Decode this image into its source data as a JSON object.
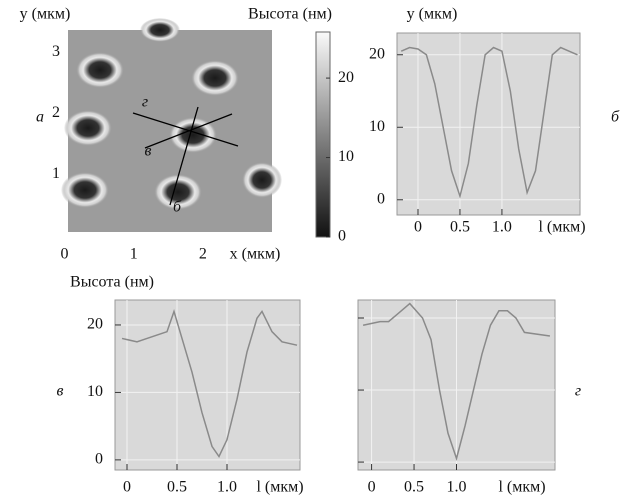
{
  "chart_data": [
    {
      "type": "image",
      "panel": "а",
      "x_label": "x (мкм)",
      "y_label": "y (мкм)",
      "xlim": [
        0.05,
        3.0
      ],
      "ylim": [
        0.05,
        3.37
      ],
      "xticks": [
        0,
        1,
        2
      ],
      "yticks": [
        1,
        2,
        3
      ],
      "line_labels": [
        "г",
        "в",
        "б"
      ],
      "colorbar": {
        "label": "Высота (нм)",
        "lim": [
          0,
          25.8
        ],
        "ticks": [
          0,
          10,
          20
        ]
      }
    },
    {
      "type": "line",
      "panel": "б",
      "y_label": "y (мкм)",
      "x_label": "l (мкм)",
      "xlim": [
        -0.25,
        1.93
      ],
      "ylim": [
        -2.1,
        23
      ],
      "xticks": [
        0,
        0.5,
        {
          "value": 1,
          "label": "1.0"
        }
      ],
      "yticks": [
        0,
        10,
        20
      ],
      "ytick_labels": true,
      "grid": true,
      "color": "#8a8a8a",
      "x": [
        -0.2,
        -0.1,
        0,
        0.1,
        0.2,
        0.3,
        0.4,
        0.5,
        0.6,
        0.7,
        0.8,
        0.9,
        1.0,
        1.1,
        1.2,
        1.3,
        1.4,
        1.5,
        1.6,
        1.7,
        1.8,
        1.9
      ],
      "values": [
        20.5,
        21,
        20.8,
        20,
        16,
        10,
        4,
        0.5,
        5,
        13,
        20,
        21,
        20.5,
        15,
        7,
        1,
        4,
        12,
        20,
        21,
        20.5,
        20
      ]
    },
    {
      "type": "line",
      "panel": "в",
      "y_label": "Высота (нм)",
      "x_label": "l (мкм)",
      "xlim": [
        -0.12,
        1.73
      ],
      "ylim": [
        -1.5,
        23.7
      ],
      "xticks": [
        0,
        0.5,
        {
          "value": 1,
          "label": "1.0"
        }
      ],
      "yticks": [
        0,
        10,
        20
      ],
      "ytick_labels": true,
      "grid": true,
      "color": "#8a8a8a",
      "x": [
        -0.05,
        0.1,
        0.2,
        0.3,
        0.4,
        0.47,
        0.55,
        0.65,
        0.75,
        0.85,
        0.92,
        1.0,
        1.1,
        1.2,
        1.3,
        1.35,
        1.45,
        1.55,
        1.7
      ],
      "values": [
        18,
        17.5,
        18,
        18.5,
        19,
        22,
        18,
        13,
        7,
        2,
        0.5,
        3,
        9,
        16,
        21,
        22,
        19,
        17.5,
        17
      ]
    },
    {
      "type": "line",
      "panel": "г",
      "x_label": "l (мкм)",
      "xlim": [
        -0.16,
        2.16
      ],
      "ylim": [
        -1.1,
        22.5
      ],
      "xticks": [
        0,
        0.5,
        {
          "value": 1,
          "label": "1.0"
        }
      ],
      "yticks": [
        0,
        10,
        20
      ],
      "ytick_labels": false,
      "grid": true,
      "color": "#8a8a8a",
      "x": [
        -0.1,
        0.1,
        0.2,
        0.3,
        0.45,
        0.6,
        0.7,
        0.8,
        0.9,
        1.0,
        1.1,
        1.2,
        1.3,
        1.4,
        1.5,
        1.6,
        1.7,
        1.8,
        2.1
      ],
      "values": [
        19,
        19.5,
        19.5,
        20.5,
        22,
        20,
        17,
        10,
        4,
        0.5,
        5,
        10,
        15,
        19,
        21,
        21,
        20,
        18,
        17.5
      ]
    }
  ]
}
